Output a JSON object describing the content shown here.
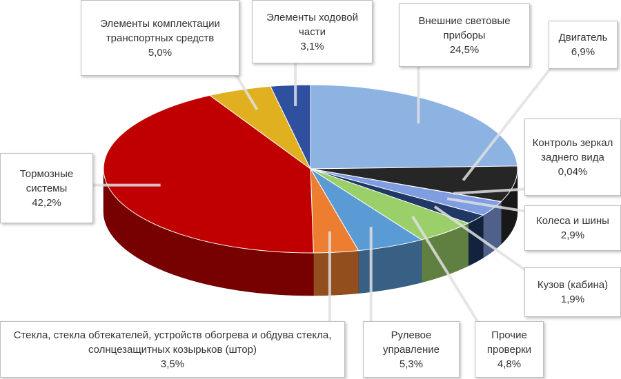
{
  "chart_data": {
    "type": "pie3d",
    "categories": [
      "Внешние световые приборы",
      "Двигатель",
      "Контроль зеркал заднего вида",
      "Колеса и шины",
      "Кузов (кабина)",
      "Прочие проверки",
      "Рулевое управление",
      "Стекла, стекла обтекателей, устройств обогрева и обдува стекла, солнцезащитных козырьков (штор)",
      "Тормозные системы",
      "Элементы комплектации транспортных средств",
      "Элементы ходовой части"
    ],
    "values": [
      24.5,
      6.9,
      0.04,
      2.9,
      1.9,
      4.8,
      5.3,
      3.5,
      42.2,
      5.0,
      3.1
    ],
    "value_labels": [
      "24,5%",
      "6,9%",
      "0,04%",
      "2,9%",
      "1,9%",
      "4,8%",
      "5,3%",
      "3,5%",
      "42,2%",
      "5,0%",
      "3,1%"
    ],
    "colors": [
      "#8db3e2",
      "#262626",
      "#bfbfbf",
      "#7f9de0",
      "#1f3864",
      "#9bcf6a",
      "#5b9bd5",
      "#ed7d31",
      "#c00000",
      "#e0b020",
      "#2f4f9f"
    ]
  }
}
